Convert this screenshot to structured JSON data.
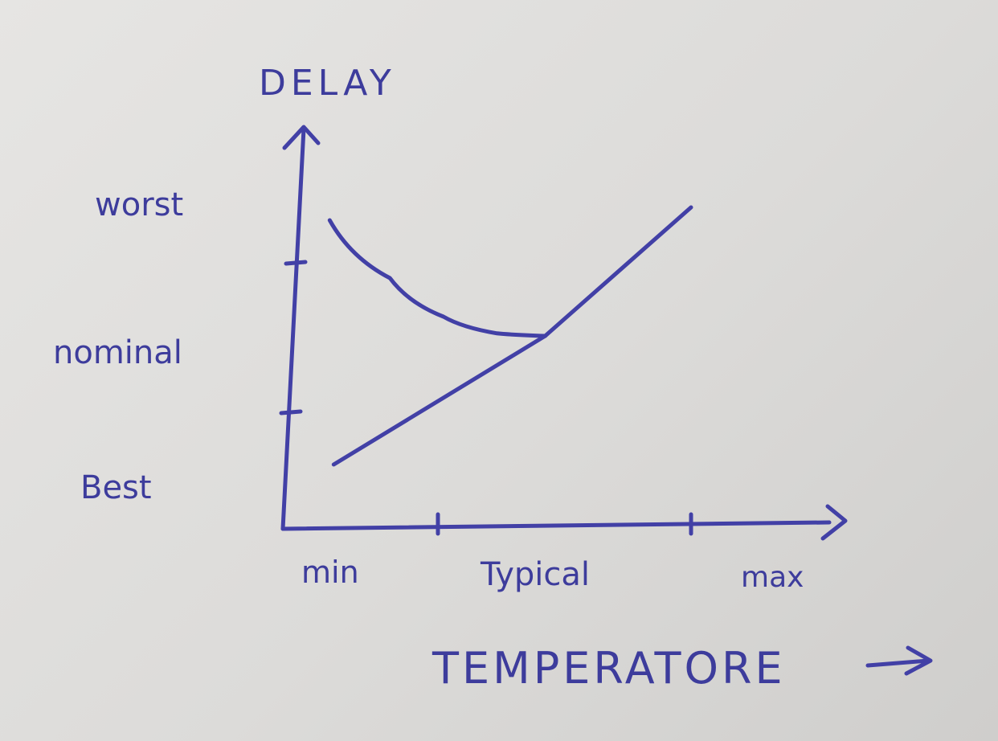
{
  "chart_data": {
    "type": "line",
    "title": "",
    "xlabel": "TEMPERATORE",
    "ylabel": "DELAY",
    "x_ticks": [
      "min",
      "Typical",
      "max"
    ],
    "y_ticks": [
      "Best",
      "nominal",
      "worst"
    ],
    "x_range": [
      0,
      3
    ],
    "y_range": [
      0,
      3
    ],
    "grid": false,
    "series": [
      {
        "x": [
          0.35,
          0.8,
          1.2,
          1.6,
          1.96
        ],
        "y": [
          2.4,
          1.95,
          1.65,
          1.52,
          1.5
        ]
      },
      {
        "x": [
          0.38,
          1.96,
          3.05
        ],
        "y": [
          0.5,
          1.5,
          2.5
        ]
      }
    ]
  }
}
